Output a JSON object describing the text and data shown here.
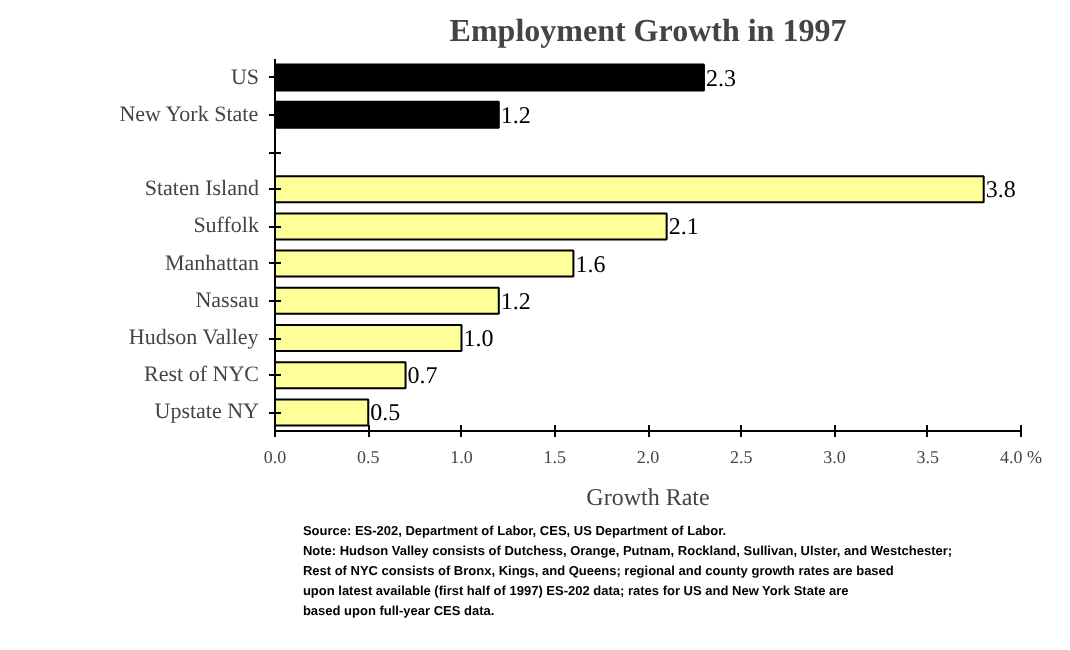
{
  "chart_data": {
    "type": "bar",
    "orientation": "horizontal",
    "title": "Employment Growth in 1997",
    "xlabel": "Growth Rate",
    "categories": [
      "US",
      "New York State",
      null,
      "Staten Island",
      "Suffolk",
      "Manhattan",
      "Nassau",
      "Hudson Valley",
      "Rest of NYC",
      "Upstate NY"
    ],
    "values": [
      2.3,
      1.2,
      null,
      3.8,
      2.1,
      1.6,
      1.2,
      1.0,
      0.7,
      0.5
    ],
    "colors": [
      "#000000",
      "#000000",
      null,
      "#ffff99",
      "#ffff99",
      "#ffff99",
      "#ffff99",
      "#ffff99",
      "#ffff99",
      "#ffff99"
    ],
    "value_labels": [
      "2.3",
      "1.2",
      null,
      "3.8",
      "2.1",
      "1.6",
      "1.2",
      "1.0",
      "0.7",
      "0.5"
    ],
    "xlim": [
      0,
      4
    ],
    "xticks": [
      {
        "value": 0,
        "label": "0.0"
      },
      0.5,
      {
        "value": 1,
        "label": "1.0"
      },
      1.5,
      {
        "value": 2,
        "label": "2.0"
      },
      2.5,
      {
        "value": 3,
        "label": "3.0"
      },
      3.5,
      {
        "value": 4,
        "label": "4.0 %"
      }
    ],
    "grid": false,
    "annotations": [
      "Source: ES-202, Department of Labor, CES, US Department of Labor.",
      "Note: Hudson Valley consists of Dutchess, Orange, Putnam, Rockland, Sullivan, Ulster, and Westchester; Rest of NYC consists of Bronx, Kings, and Queens; regional and county growth rates are based upon latest available (first half of 1997) ES-202 data; rates for US and New York State are based upon full-year CES data."
    ]
  }
}
